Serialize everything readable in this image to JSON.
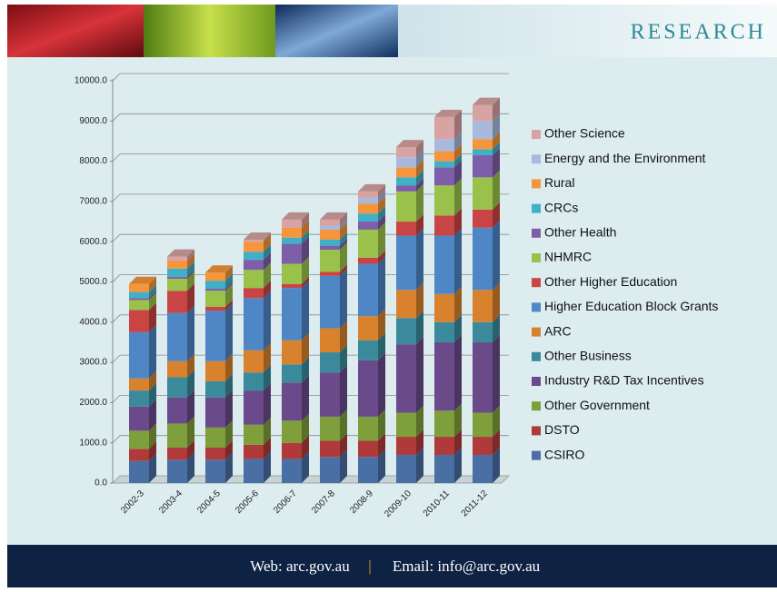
{
  "header": {
    "title": "RESEARCH"
  },
  "footer": {
    "web": "Web: arc.gov.au",
    "separator": "|",
    "email": "Email: info@arc.gov.au"
  },
  "chart_data": {
    "type": "stacked_bar_3d",
    "categories": [
      "2002-3",
      "2003-4",
      "2004-5",
      "2005-6",
      "2006-7",
      "2007-8",
      "2008-9",
      "2009-10",
      "2010-11",
      "2011-12"
    ],
    "ylim": [
      0,
      10000
    ],
    "yticks": [
      {
        "value": 0,
        "label": "0.0"
      },
      {
        "value": 1000,
        "label": "1000.0"
      },
      {
        "value": 2000,
        "label": "2000.0"
      },
      {
        "value": 3000,
        "label": "3000.0"
      },
      {
        "value": 4000,
        "label": "4000.0"
      },
      {
        "value": 5000,
        "label": "5000.0"
      },
      {
        "value": 6000,
        "label": "6000.0"
      },
      {
        "value": 7000,
        "label": "7000.0"
      },
      {
        "value": 8000,
        "label": "8000.0"
      },
      {
        "value": 9000,
        "label": "9000.0"
      },
      {
        "value": 10000,
        "label": "10000.0"
      }
    ],
    "grid": true,
    "legend": "right",
    "series": [
      {
        "name": "CSIRO",
        "color": "#4a6fa5",
        "values": [
          550,
          580,
          580,
          600,
          600,
          650,
          650,
          700,
          700,
          700
        ]
      },
      {
        "name": "DSTO",
        "color": "#b03a3a",
        "values": [
          300,
          300,
          300,
          350,
          400,
          400,
          400,
          450,
          450,
          450
        ]
      },
      {
        "name": "Other Government",
        "color": "#7f9f3c",
        "values": [
          450,
          600,
          500,
          500,
          550,
          600,
          600,
          600,
          650,
          600
        ]
      },
      {
        "name": "Industry R&D Tax Incentives",
        "color": "#6a4a8a",
        "values": [
          600,
          650,
          750,
          850,
          950,
          1100,
          1400,
          1700,
          1700,
          1750
        ]
      },
      {
        "name": "Other Business",
        "color": "#3a8a9c",
        "values": [
          400,
          500,
          400,
          450,
          450,
          500,
          500,
          650,
          500,
          500
        ]
      },
      {
        "name": "ARC",
        "color": "#d8822e",
        "values": [
          300,
          400,
          500,
          550,
          600,
          600,
          600,
          700,
          700,
          800
        ]
      },
      {
        "name": "Higher Education Block Grants",
        "color": "#4f86c6",
        "values": [
          1150,
          1200,
          1250,
          1300,
          1300,
          1300,
          1300,
          1350,
          1450,
          1550
        ]
      },
      {
        "name": "Other Higher Education",
        "color": "#c94545",
        "values": [
          550,
          550,
          100,
          250,
          100,
          100,
          150,
          350,
          500,
          450
        ]
      },
      {
        "name": "NHMRC",
        "color": "#9ac24a",
        "values": [
          250,
          300,
          400,
          450,
          500,
          550,
          700,
          750,
          750,
          800
        ]
      },
      {
        "name": "Other Health",
        "color": "#7d5ea8",
        "values": [
          50,
          50,
          50,
          250,
          500,
          100,
          200,
          150,
          450,
          550
        ]
      },
      {
        "name": "CRCs",
        "color": "#3fb0c8",
        "values": [
          150,
          200,
          200,
          200,
          150,
          150,
          200,
          200,
          150,
          150
        ]
      },
      {
        "name": "Rural",
        "color": "#f6963c",
        "values": [
          200,
          200,
          200,
          250,
          250,
          250,
          250,
          250,
          250,
          250
        ]
      },
      {
        "name": "Energy and the Environment",
        "color": "#a9b9de",
        "values": [
          0,
          0,
          0,
          0,
          0,
          100,
          150,
          250,
          300,
          450
        ]
      },
      {
        "name": "Other Science",
        "color": "#d9a3a3",
        "values": [
          0,
          100,
          0,
          50,
          200,
          150,
          150,
          250,
          550,
          400
        ]
      }
    ]
  }
}
